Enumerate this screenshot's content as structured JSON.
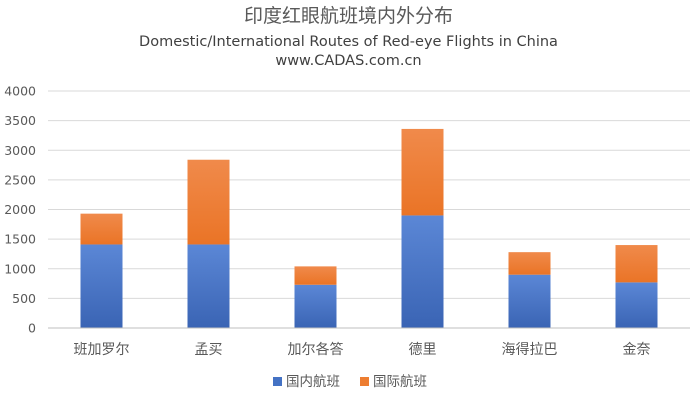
{
  "chart_data": {
    "type": "bar",
    "stacked": true,
    "title": "印度红眼航班境内外分布",
    "subtitle": "Domestic/International Routes of Red-eye Flights in China",
    "source": "www.CADAS.com.cn",
    "xlabel": "",
    "ylabel": "",
    "categories": [
      "班加罗尔",
      "孟买",
      "加尔各答",
      "德里",
      "海得拉巴",
      "金奈"
    ],
    "series": [
      {
        "name": "国内航班",
        "color": "#4472c4",
        "values": [
          1410,
          1410,
          730,
          1900,
          900,
          770
        ]
      },
      {
        "name": "国际航班",
        "color": "#ed7d31",
        "values": [
          520,
          1430,
          310,
          1460,
          380,
          630
        ]
      }
    ],
    "ylim": [
      0,
      4000
    ],
    "yticks": [
      0,
      500,
      1000,
      1500,
      2000,
      2500,
      3000,
      3500,
      4000
    ],
    "grid": true,
    "legend_position": "bottom"
  }
}
